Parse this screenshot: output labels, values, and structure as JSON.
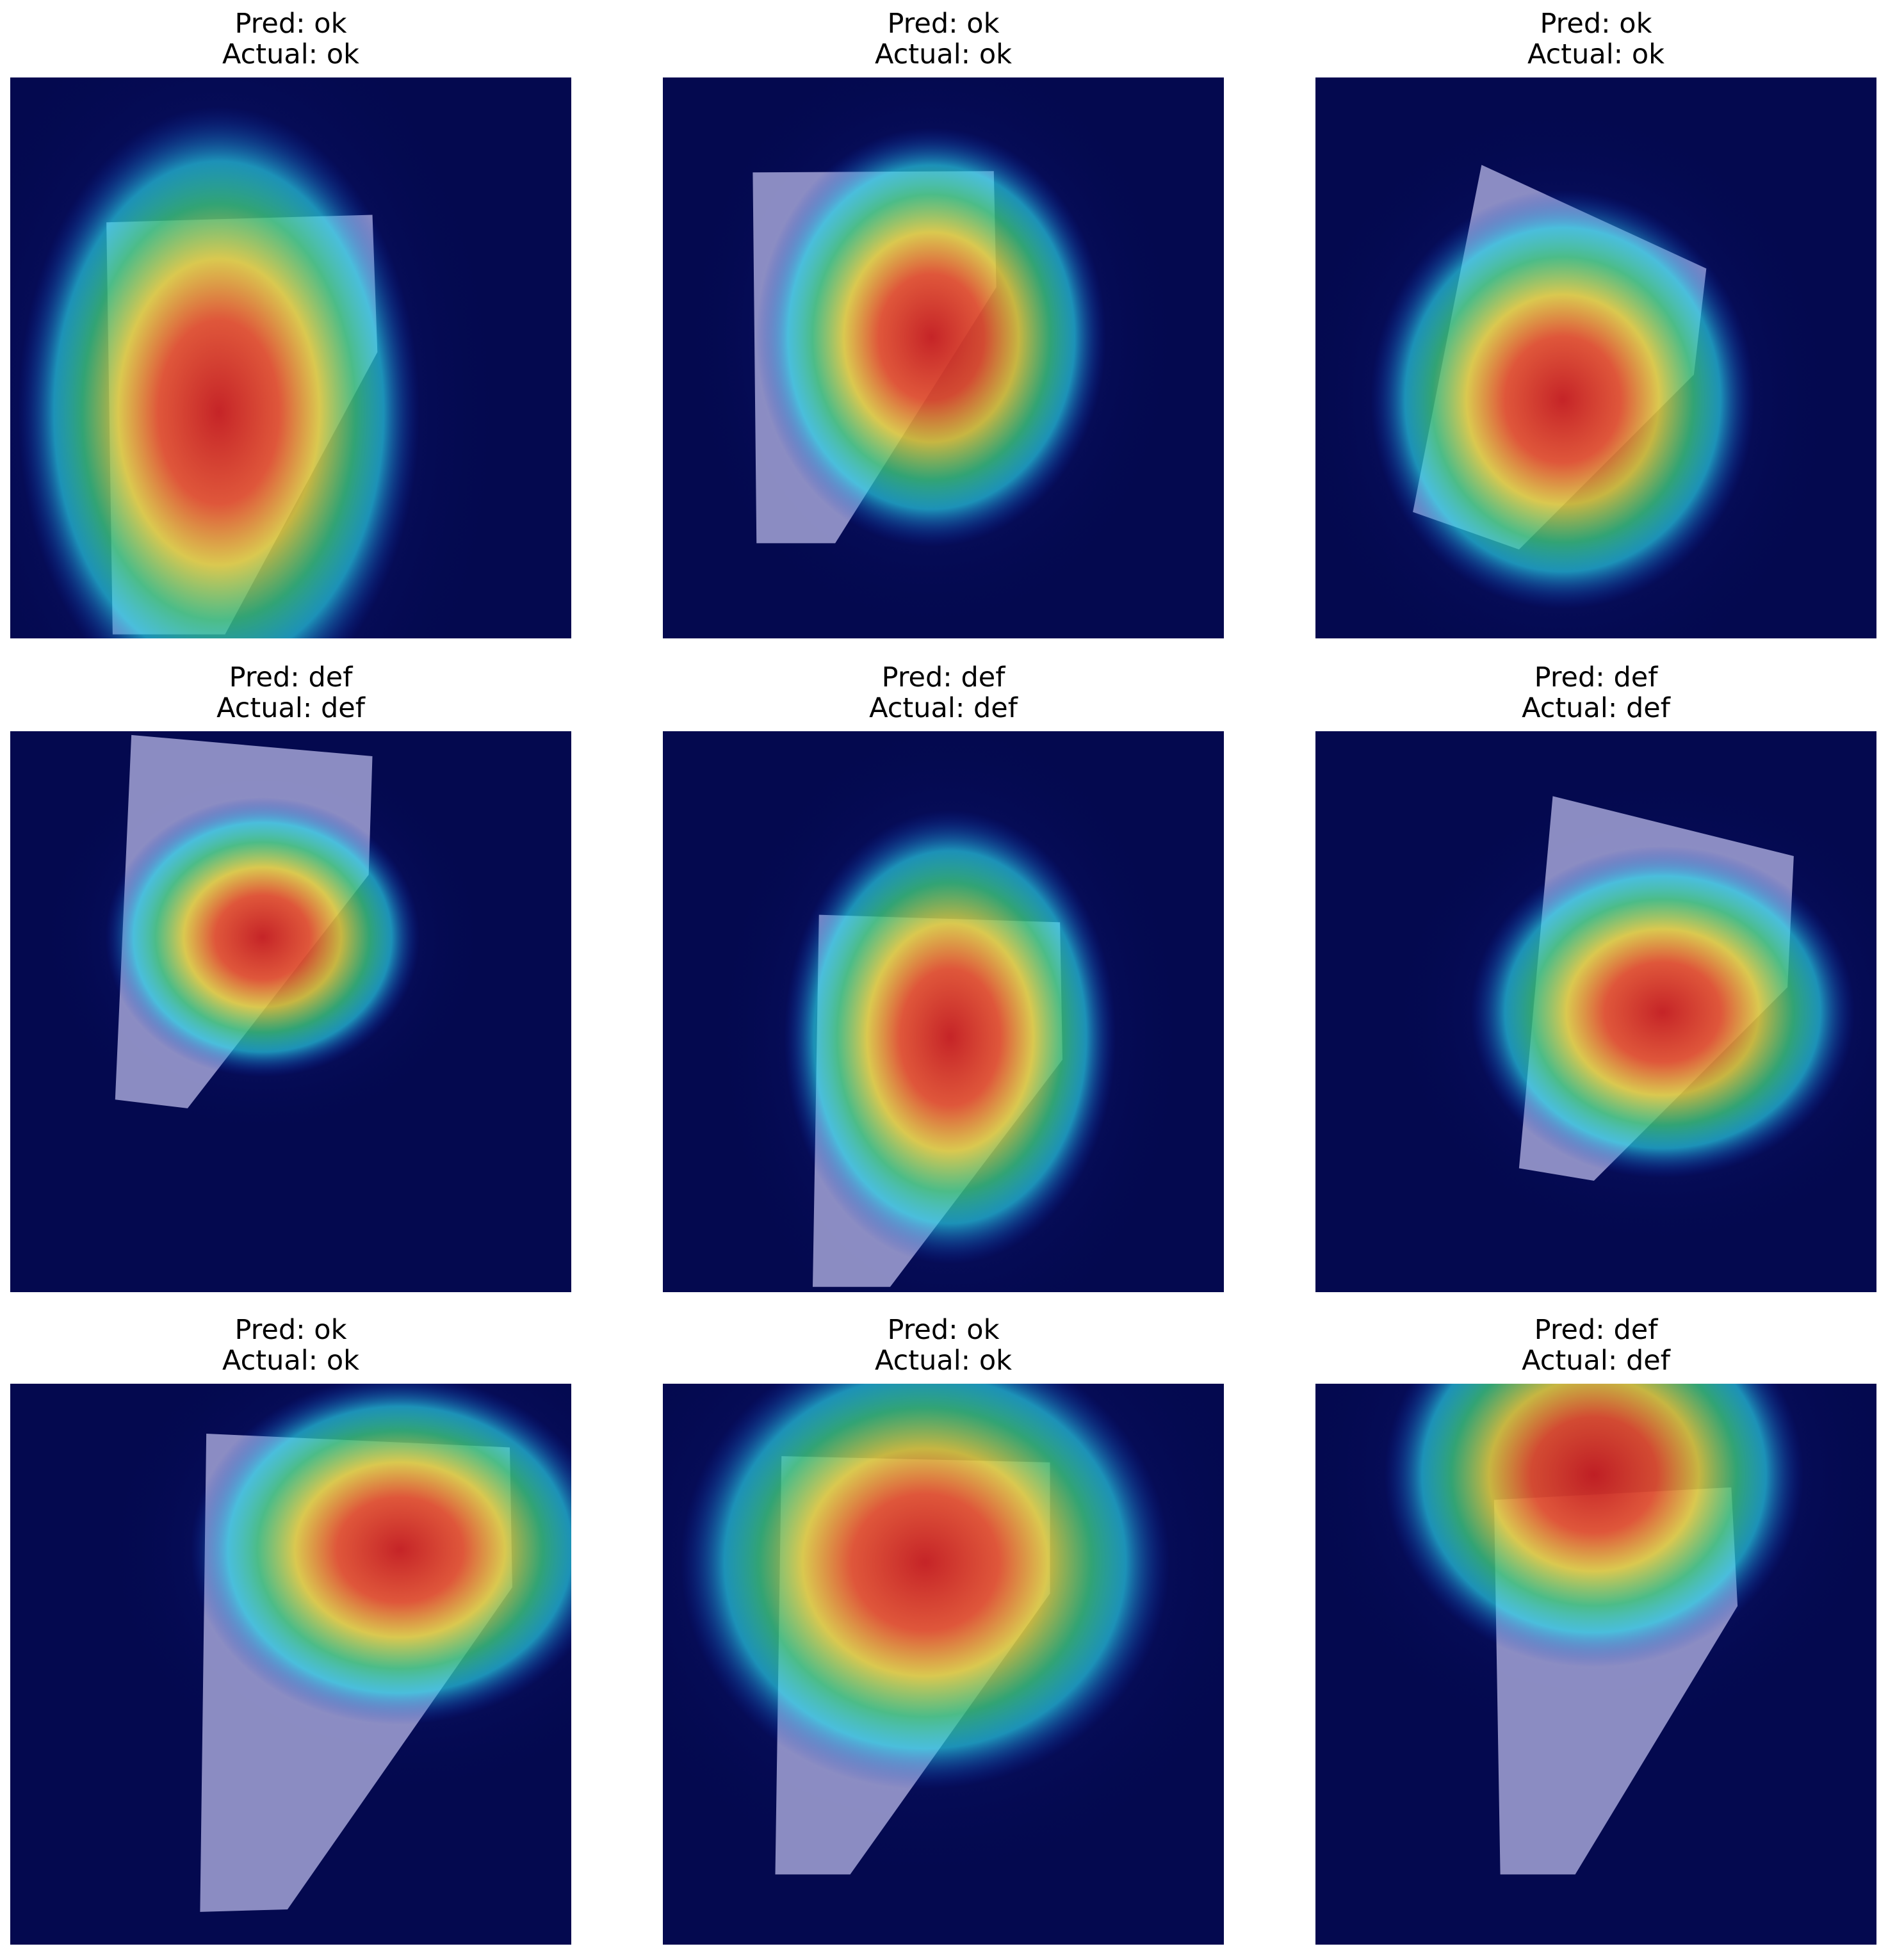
{
  "panels": [
    {
      "pred": "Pred: ok",
      "actual": "Actual: ok"
    },
    {
      "pred": "Pred: ok",
      "actual": "Actual: ok"
    },
    {
      "pred": "Pred: ok",
      "actual": "Actual: ok"
    },
    {
      "pred": "Pred: def",
      "actual": "Actual: def"
    },
    {
      "pred": "Pred: def",
      "actual": "Actual: def"
    },
    {
      "pred": "Pred: def",
      "actual": "Actual: def"
    },
    {
      "pred": "Pred: ok",
      "actual": "Actual: ok"
    },
    {
      "pred": "Pred: ok",
      "actual": "Actual: ok"
    },
    {
      "pred": "Pred: def",
      "actual": "Actual: def"
    }
  ]
}
